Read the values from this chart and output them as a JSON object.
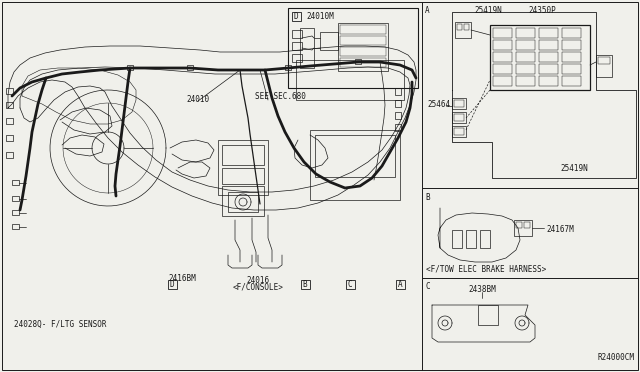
{
  "bg_color": "#f0f0eb",
  "line_color": "#1a1a1a",
  "thin_line": 0.5,
  "medium_line": 0.9,
  "thick_line": 2.0,
  "labels": {
    "main_part": "24010",
    "see_sec": "SEE SEC.680",
    "part_d_inset": "24010M",
    "part_24168m": "2416BM",
    "part_24016": "24016",
    "part_24016_sub": "<F/CONSOLE>",
    "part_24028q": "24028Q- F/LTG SENSOR",
    "label_a": "A",
    "label_b": "B",
    "label_c": "C",
    "label_d": "D",
    "sec_a_label": "A",
    "sec_b_label": "B",
    "sec_c_label": "C",
    "part_25419n_top": "25419N",
    "part_24350p": "24350P",
    "part_25464": "25464",
    "part_25419n_bot": "25419N",
    "part_24167m": "24167M",
    "ftow": "<F/TOW ELEC BRAKE HARNESS>",
    "part_24380m": "2438BM",
    "revision": "R24000CM"
  },
  "font_sizes": {
    "tiny": 4.5,
    "small": 5.5,
    "medium": 6.5,
    "large": 7.5
  }
}
